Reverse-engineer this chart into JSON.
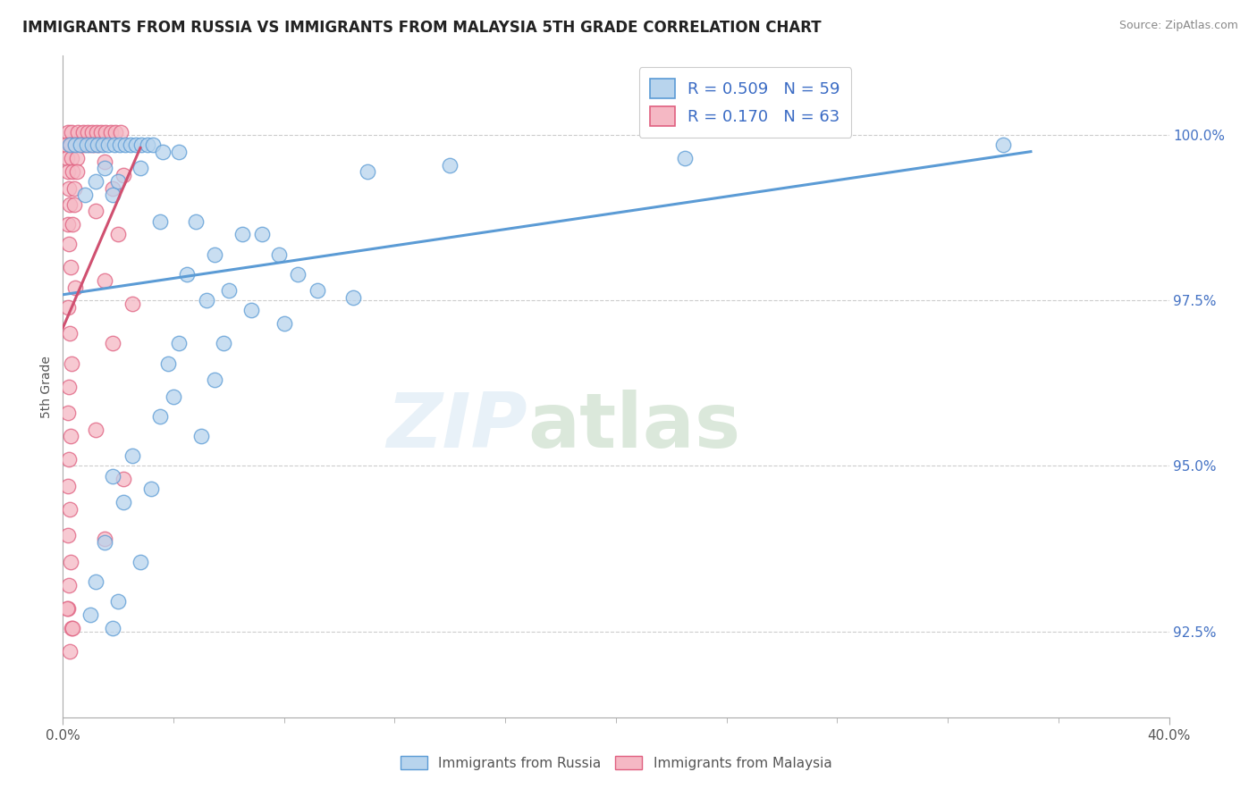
{
  "title": "IMMIGRANTS FROM RUSSIA VS IMMIGRANTS FROM MALAYSIA 5TH GRADE CORRELATION CHART",
  "source": "Source: ZipAtlas.com",
  "ylabel": "5th Grade",
  "ytick_values": [
    92.5,
    95.0,
    97.5,
    100.0
  ],
  "xlim": [
    0.0,
    40.0
  ],
  "ylim": [
    91.2,
    101.2
  ],
  "legend_r_russia": "R = 0.509",
  "legend_n_russia": "N = 59",
  "legend_r_malaysia": "R = 0.170",
  "legend_n_malaysia": "N = 63",
  "color_russia_fill": "#b8d4ed",
  "color_russia_edge": "#5b9bd5",
  "color_malaysia_fill": "#f5b8c4",
  "color_malaysia_edge": "#e06080",
  "color_russia_line": "#5b9bd5",
  "color_malaysia_line": "#d05070",
  "russia_points": [
    [
      0.25,
      99.85
    ],
    [
      0.45,
      99.85
    ],
    [
      0.65,
      99.85
    ],
    [
      0.85,
      99.85
    ],
    [
      1.05,
      99.85
    ],
    [
      1.25,
      99.85
    ],
    [
      1.45,
      99.85
    ],
    [
      1.65,
      99.85
    ],
    [
      1.85,
      99.85
    ],
    [
      2.05,
      99.85
    ],
    [
      2.25,
      99.85
    ],
    [
      2.45,
      99.85
    ],
    [
      2.65,
      99.85
    ],
    [
      2.85,
      99.85
    ],
    [
      3.05,
      99.85
    ],
    [
      3.25,
      99.85
    ],
    [
      3.6,
      99.75
    ],
    [
      4.2,
      99.75
    ],
    [
      1.5,
      99.5
    ],
    [
      2.8,
      99.5
    ],
    [
      1.2,
      99.3
    ],
    [
      2.0,
      99.3
    ],
    [
      0.8,
      99.1
    ],
    [
      1.8,
      99.1
    ],
    [
      3.5,
      98.7
    ],
    [
      4.8,
      98.7
    ],
    [
      6.5,
      98.5
    ],
    [
      7.2,
      98.5
    ],
    [
      5.5,
      98.2
    ],
    [
      7.8,
      98.2
    ],
    [
      4.5,
      97.9
    ],
    [
      8.5,
      97.9
    ],
    [
      6.0,
      97.65
    ],
    [
      9.2,
      97.65
    ],
    [
      5.2,
      97.5
    ],
    [
      6.8,
      97.35
    ],
    [
      8.0,
      97.15
    ],
    [
      4.2,
      96.85
    ],
    [
      5.8,
      96.85
    ],
    [
      3.8,
      96.55
    ],
    [
      5.5,
      96.3
    ],
    [
      4.0,
      96.05
    ],
    [
      3.5,
      95.75
    ],
    [
      5.0,
      95.45
    ],
    [
      2.5,
      95.15
    ],
    [
      1.8,
      94.85
    ],
    [
      3.2,
      94.65
    ],
    [
      2.2,
      94.45
    ],
    [
      1.5,
      93.85
    ],
    [
      2.8,
      93.55
    ],
    [
      1.2,
      93.25
    ],
    [
      2.0,
      92.95
    ],
    [
      1.0,
      92.75
    ],
    [
      1.8,
      92.55
    ],
    [
      34.0,
      99.85
    ],
    [
      22.5,
      99.65
    ],
    [
      14.0,
      99.55
    ],
    [
      11.0,
      99.45
    ],
    [
      10.5,
      97.55
    ]
  ],
  "malaysia_points": [
    [
      0.18,
      100.05
    ],
    [
      0.32,
      100.05
    ],
    [
      0.55,
      100.05
    ],
    [
      0.72,
      100.05
    ],
    [
      0.88,
      100.05
    ],
    [
      1.05,
      100.05
    ],
    [
      1.22,
      100.05
    ],
    [
      1.38,
      100.05
    ],
    [
      1.55,
      100.05
    ],
    [
      1.72,
      100.05
    ],
    [
      1.9,
      100.05
    ],
    [
      2.08,
      100.05
    ],
    [
      0.12,
      99.85
    ],
    [
      0.28,
      99.85
    ],
    [
      0.45,
      99.85
    ],
    [
      0.62,
      99.85
    ],
    [
      0.78,
      99.85
    ],
    [
      0.95,
      99.85
    ],
    [
      1.12,
      99.85
    ],
    [
      1.28,
      99.85
    ],
    [
      0.15,
      99.65
    ],
    [
      0.32,
      99.65
    ],
    [
      0.5,
      99.65
    ],
    [
      0.18,
      99.45
    ],
    [
      0.35,
      99.45
    ],
    [
      0.52,
      99.45
    ],
    [
      0.22,
      99.2
    ],
    [
      0.4,
      99.2
    ],
    [
      0.25,
      98.95
    ],
    [
      0.42,
      98.95
    ],
    [
      0.18,
      98.65
    ],
    [
      0.35,
      98.65
    ],
    [
      0.22,
      98.35
    ],
    [
      0.28,
      98.0
    ],
    [
      0.45,
      97.7
    ],
    [
      0.2,
      97.4
    ],
    [
      0.25,
      97.0
    ],
    [
      0.3,
      96.55
    ],
    [
      0.22,
      96.2
    ],
    [
      0.18,
      95.8
    ],
    [
      0.28,
      95.45
    ],
    [
      0.22,
      95.1
    ],
    [
      0.18,
      94.7
    ],
    [
      0.25,
      94.35
    ],
    [
      0.2,
      93.95
    ],
    [
      0.28,
      93.55
    ],
    [
      0.22,
      93.2
    ],
    [
      0.18,
      92.85
    ],
    [
      0.32,
      92.55
    ],
    [
      0.25,
      92.2
    ],
    [
      0.35,
      92.55
    ],
    [
      0.15,
      92.85
    ],
    [
      1.5,
      99.6
    ],
    [
      2.2,
      99.4
    ],
    [
      1.8,
      99.2
    ],
    [
      1.2,
      98.85
    ],
    [
      2.0,
      98.5
    ],
    [
      1.5,
      97.8
    ],
    [
      2.5,
      97.45
    ],
    [
      1.8,
      96.85
    ],
    [
      1.2,
      95.55
    ],
    [
      2.2,
      94.8
    ],
    [
      1.5,
      93.9
    ]
  ]
}
